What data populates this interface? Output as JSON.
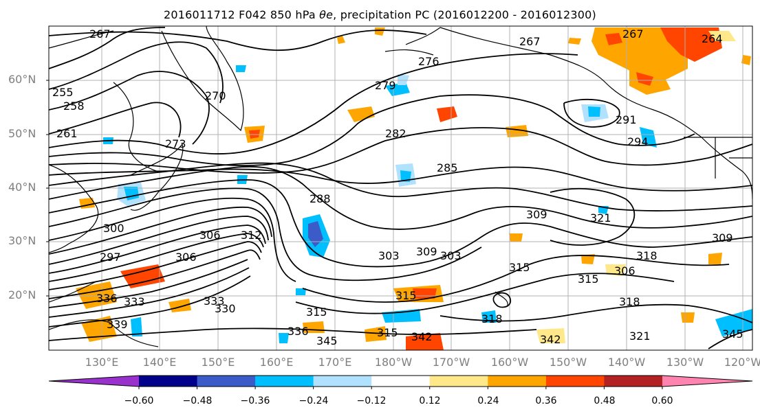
{
  "figure": {
    "title_main": "2016011712 F042 850 hPa ",
    "title_theta": "θe",
    "title_rest": ", precipitation PC (2016012200 - 2016012300)"
  },
  "axes": {
    "lat_ticks": [
      "60°N",
      "50°N",
      "40°N",
      "30°N",
      "20°N"
    ],
    "lon_ticks": [
      "130°E",
      "140°E",
      "150°E",
      "160°E",
      "170°E",
      "180°W",
      "170°W",
      "160°W",
      "150°W",
      "140°W",
      "130°W",
      "120°W"
    ]
  },
  "contour_labels": [
    "267",
    "264",
    "261",
    "258",
    "255",
    "270",
    "273",
    "279",
    "276",
    "282",
    "285",
    "288",
    "291",
    "294",
    "297",
    "300",
    "303",
    "306",
    "309",
    "312",
    "315",
    "318",
    "321",
    "330",
    "333",
    "336",
    "339",
    "342",
    "345"
  ],
  "colorbar": {
    "ticks": [
      "−0.60",
      "−0.48",
      "−0.36",
      "−0.24",
      "−0.12",
      "0.12",
      "0.24",
      "0.36",
      "0.48",
      "0.60"
    ],
    "colors": [
      "#9932cc",
      "#00008b",
      "#3a5bc8",
      "#00bfff",
      "#b0e2ff",
      "#ffffff",
      "#ffe88a",
      "#ffa500",
      "#ff4500",
      "#b22222",
      "#ff85b0"
    ]
  }
}
